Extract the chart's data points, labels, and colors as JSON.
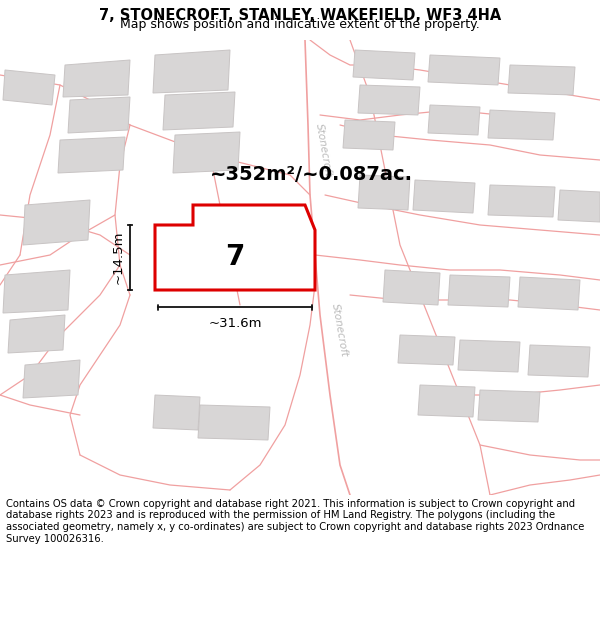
{
  "title": "7, STONECROFT, STANLEY, WAKEFIELD, WF3 4HA",
  "subtitle": "Map shows position and indicative extent of the property.",
  "footer": "Contains OS data © Crown copyright and database right 2021. This information is subject to Crown copyright and database rights 2023 and is reproduced with the permission of HM Land Registry. The polygons (including the associated geometry, namely x, y co-ordinates) are subject to Crown copyright and database rights 2023 Ordnance Survey 100026316.",
  "area_label": "~352m²/~0.087ac.",
  "width_label": "~31.6m",
  "height_label": "~14.5m",
  "property_number": "7",
  "map_bg": "#f2f0f0",
  "building_fill": "#d8d6d6",
  "building_edge": "#c8c4c4",
  "road_color": "#f0a0a0",
  "road_lw": 1.0,
  "highlight_color": "#dd0000",
  "highlight_lw": 2.2,
  "dim_color": "#111111",
  "road_label_color": "#aaaaaa",
  "title_fontsize": 10.5,
  "subtitle_fontsize": 9,
  "footer_fontsize": 7.2,
  "area_fontsize": 14,
  "number_fontsize": 20,
  "dim_fontsize": 9.5
}
